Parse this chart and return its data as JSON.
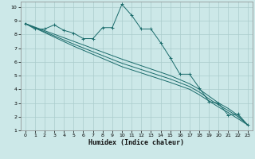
{
  "xlabel": "Humidex (Indice chaleur)",
  "bg_color": "#cce8e8",
  "grid_color": "#aacccc",
  "line_color": "#1a6b6b",
  "xlim": [
    -0.5,
    23.5
  ],
  "ylim": [
    1,
    10.4
  ],
  "xticks": [
    0,
    1,
    2,
    3,
    4,
    5,
    6,
    7,
    8,
    9,
    10,
    11,
    12,
    13,
    14,
    15,
    16,
    17,
    18,
    19,
    20,
    21,
    22,
    23
  ],
  "yticks": [
    1,
    2,
    3,
    4,
    5,
    6,
    7,
    8,
    9,
    10
  ],
  "main_line": [
    [
      0,
      8.8
    ],
    [
      1,
      8.4
    ],
    [
      2,
      8.4
    ],
    [
      3,
      8.7
    ],
    [
      4,
      8.3
    ],
    [
      5,
      8.1
    ],
    [
      6,
      7.7
    ],
    [
      7,
      7.7
    ],
    [
      8,
      8.5
    ],
    [
      9,
      8.5
    ],
    [
      10,
      10.2
    ],
    [
      11,
      9.4
    ],
    [
      12,
      8.4
    ],
    [
      13,
      8.4
    ],
    [
      14,
      7.4
    ],
    [
      15,
      6.3
    ],
    [
      16,
      5.1
    ],
    [
      17,
      5.1
    ],
    [
      18,
      4.1
    ],
    [
      19,
      3.1
    ],
    [
      20,
      3.0
    ],
    [
      21,
      2.1
    ],
    [
      22,
      2.2
    ],
    [
      23,
      1.4
    ]
  ],
  "lower_line1": [
    [
      0,
      8.8
    ],
    [
      5,
      7.5
    ],
    [
      10,
      6.2
    ],
    [
      15,
      5.0
    ],
    [
      17,
      4.4
    ],
    [
      18,
      4.0
    ],
    [
      19,
      3.5
    ],
    [
      20,
      3.0
    ],
    [
      21,
      2.6
    ],
    [
      22,
      2.1
    ],
    [
      23,
      1.4
    ]
  ],
  "lower_line2": [
    [
      0,
      8.8
    ],
    [
      5,
      7.3
    ],
    [
      10,
      5.9
    ],
    [
      15,
      4.75
    ],
    [
      17,
      4.2
    ],
    [
      18,
      3.8
    ],
    [
      19,
      3.3
    ],
    [
      20,
      2.85
    ],
    [
      21,
      2.45
    ],
    [
      22,
      2.0
    ],
    [
      23,
      1.4
    ]
  ],
  "lower_line3": [
    [
      0,
      8.8
    ],
    [
      5,
      7.15
    ],
    [
      10,
      5.65
    ],
    [
      15,
      4.5
    ],
    [
      17,
      4.0
    ],
    [
      18,
      3.6
    ],
    [
      19,
      3.15
    ],
    [
      20,
      2.7
    ],
    [
      21,
      2.3
    ],
    [
      22,
      1.85
    ],
    [
      23,
      1.4
    ]
  ]
}
